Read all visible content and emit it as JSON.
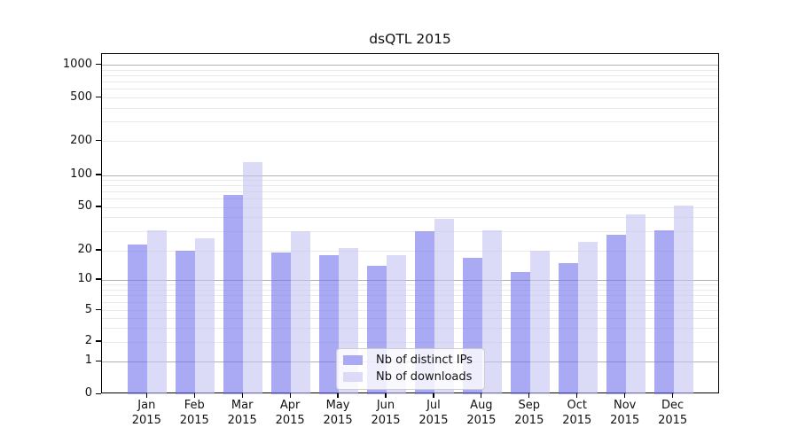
{
  "chart_data": {
    "type": "bar",
    "title": "dsQTL 2015",
    "categories": [
      "Jan 2015",
      "Feb 2015",
      "Mar 2015",
      "Apr 2015",
      "May 2015",
      "Jun 2015",
      "Jul 2015",
      "Aug 2015",
      "Sep 2015",
      "Oct 2015",
      "Nov 2015",
      "Dec 2015"
    ],
    "series": [
      {
        "name": "Nb of distinct IPs",
        "color": "#aaaaf4",
        "fill": "rgba(113,113,237,0.6)",
        "values": [
          23,
          20,
          65,
          19,
          18,
          14,
          30,
          17,
          12,
          15,
          28,
          31
        ]
      },
      {
        "name": "Nb of downloads",
        "color": "#dbdbf7",
        "fill": "rgba(195,195,242,0.6)",
        "values": [
          31,
          26,
          130,
          30,
          21,
          18,
          39,
          31,
          20,
          24,
          43,
          52
        ]
      }
    ],
    "xlabel": "",
    "ylabel": "",
    "yscale": "symlog",
    "yticks": [
      0,
      1,
      2,
      5,
      10,
      20,
      50,
      100,
      200,
      500,
      1000
    ],
    "ylim": [
      0,
      1300
    ],
    "grid": true,
    "legend_position": "lower center"
  },
  "colors": {
    "background": "#ffffff",
    "axis": "#000000",
    "major_grid": "#b2b2b2",
    "minor_grid": "#eaeaea",
    "text": "#111111",
    "legend_border": "#cccccc",
    "legend_bg": "rgba(255,255,255,0.8)"
  }
}
